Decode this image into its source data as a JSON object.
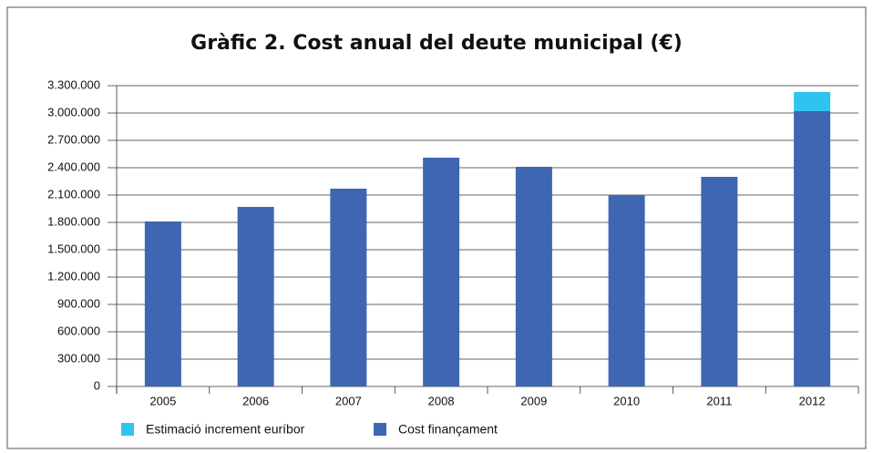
{
  "chart_data": {
    "type": "stacked_bar",
    "title": "Gràfic 2. Cost anual del deute municipal (€)",
    "categories": [
      "2005",
      "2006",
      "2007",
      "2008",
      "2009",
      "2010",
      "2011",
      "2012"
    ],
    "series": [
      {
        "name": "Estimació increment euríbor",
        "color": "#2ec4f0",
        "values": [
          null,
          null,
          null,
          null,
          null,
          null,
          null,
          210000
        ]
      },
      {
        "name": "Cost finançament",
        "color": "#3e66b2",
        "values": [
          1810000,
          1970000,
          2170000,
          2510000,
          2410000,
          2100000,
          2300000,
          3020000
        ]
      }
    ],
    "stack_order": [
      1,
      0
    ],
    "ylim": [
      0,
      3300000
    ],
    "yticks": [
      0,
      {
        "value": 300000,
        "label": "300.000"
      },
      {
        "value": 600000,
        "label": "600.000"
      },
      {
        "value": 900000,
        "label": "900.000"
      },
      {
        "value": 1200000,
        "label": "1.200.000"
      },
      {
        "value": 1500000,
        "label": "1.500.000"
      },
      {
        "value": 1800000,
        "label": "1.800.000"
      },
      {
        "value": 2100000,
        "label": "2.100.000"
      },
      {
        "value": 2400000,
        "label": "2.400.000"
      },
      {
        "value": 2700000,
        "label": "2.700.000"
      },
      {
        "value": 3000000,
        "label": "3.000.000"
      },
      {
        "value": 3300000,
        "label": "3.300.000"
      }
    ],
    "grid": true,
    "legend": "bottom"
  }
}
